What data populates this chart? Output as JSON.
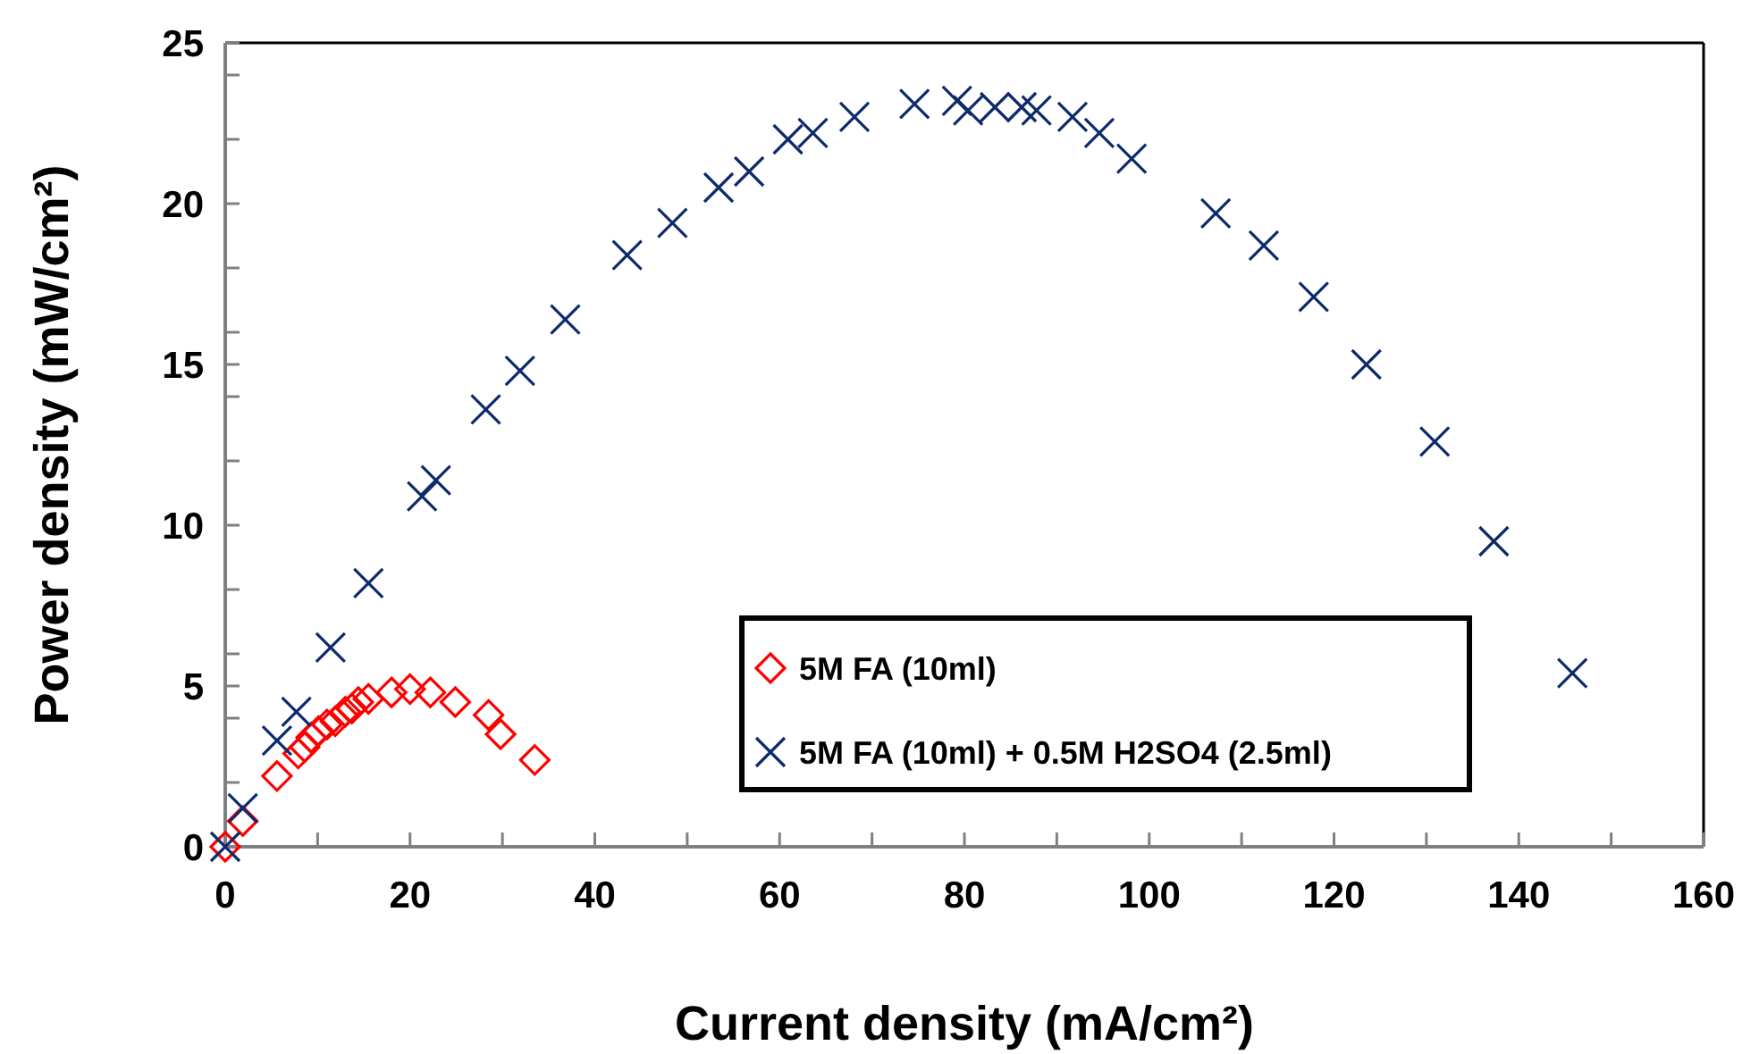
{
  "chart_data": {
    "type": "scatter",
    "xlabel": "Current density (mA/cm²)",
    "ylabel": "Power density (mW/cm²)",
    "xlim": [
      0,
      160
    ],
    "ylim": [
      0,
      25
    ],
    "xticks": [
      0,
      {
        "value": 10,
        "label": null
      },
      20,
      {
        "value": 30,
        "label": null
      },
      40,
      {
        "value": 50,
        "label": null
      },
      60,
      {
        "value": 70,
        "label": null
      },
      80,
      {
        "value": 90,
        "label": null
      },
      100,
      {
        "value": 110,
        "label": null
      },
      120,
      {
        "value": 130,
        "label": null
      },
      140,
      {
        "value": 150,
        "label": null
      },
      160
    ],
    "yticks": [
      0,
      {
        "value": 2,
        "label": null
      },
      {
        "value": 4,
        "label": null
      },
      5,
      {
        "value": 6,
        "label": null
      },
      {
        "value": 8,
        "label": null
      },
      10,
      {
        "value": 12,
        "label": null
      },
      {
        "value": 14,
        "label": null
      },
      15,
      {
        "value": 16,
        "label": null
      },
      {
        "value": 18,
        "label": null
      },
      20,
      {
        "value": 22,
        "label": null
      },
      {
        "value": 24,
        "label": null
      },
      25
    ],
    "grid": false,
    "legend": "bottom right",
    "series": [
      {
        "name": "5M FA (10ml)",
        "color": "#ff0000",
        "marker": "diamond",
        "x": [
          0,
          1.9,
          5.6,
          7.9,
          8.6,
          9.3,
          10.1,
          11.0,
          11.9,
          13.0,
          13.7,
          14.4,
          15.5,
          18.0,
          20.0,
          22.2,
          24.9,
          28.5,
          29.8,
          33.5
        ],
        "values": [
          0,
          0.8,
          2.2,
          2.9,
          3.1,
          3.4,
          3.6,
          3.8,
          3.9,
          4.2,
          4.3,
          4.5,
          4.6,
          4.8,
          4.9,
          4.8,
          4.5,
          4.1,
          3.5,
          2.7
        ]
      },
      {
        "name": "5M FA (10ml) + 0.5M H2SO4 (2.5ml)",
        "color": "#0d2a6b",
        "marker": "cross",
        "x": [
          0,
          1.9,
          5.6,
          7.7,
          11.4,
          15.5,
          21.3,
          22.8,
          28.2,
          31.9,
          36.8,
          43.5,
          48.4,
          53.4,
          56.7,
          60.9,
          63.6,
          68.1,
          74.6,
          79.2,
          80.4,
          83.3,
          86.2,
          87.8,
          91.7,
          94.6,
          98.1,
          107.2,
          112.4,
          117.8,
          123.5,
          130.9,
          137.3,
          145.8
        ],
        "values": [
          0,
          1.2,
          3.3,
          4.2,
          6.2,
          8.2,
          10.9,
          11.4,
          13.6,
          14.8,
          16.4,
          18.4,
          19.4,
          20.5,
          21.0,
          22.0,
          22.2,
          22.7,
          23.1,
          23.2,
          22.9,
          23.0,
          23.0,
          22.9,
          22.7,
          22.2,
          21.4,
          19.7,
          18.7,
          17.1,
          15.0,
          12.6,
          9.5,
          5.4
        ]
      }
    ]
  }
}
